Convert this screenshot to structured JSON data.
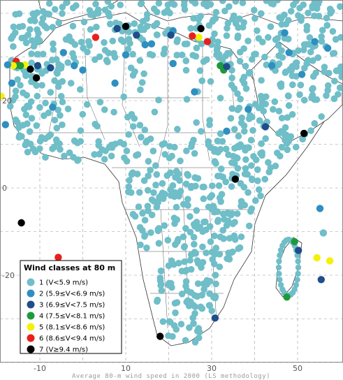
{
  "legend": {
    "title": "Wind classes at 80 m",
    "classes": [
      {
        "label": "1 (V<5.9 m/s)",
        "color": "#6fbec8"
      },
      {
        "label": "2 (5.9≤V<6.9 m/s)",
        "color": "#2f8fc0"
      },
      {
        "label": "3 (6.9≤V<7.5 m/s)",
        "color": "#1f4e8a"
      },
      {
        "label": "4 (7.5≤V<8.1 m/s)",
        "color": "#1f9a3a"
      },
      {
        "label": "5 (8.1≤V<8.6 m/s)",
        "color": "#f5f00a"
      },
      {
        "label": "6 (8.6≤V<9.4 m/s)",
        "color": "#e8201c"
      },
      {
        "label": "7 (V≥9.4 m/s)",
        "color": "#000000"
      }
    ]
  },
  "axes": {
    "lon_ticks": [
      {
        "value": -10,
        "label": "-10"
      },
      {
        "value": 10,
        "label": "10"
      },
      {
        "value": 30,
        "label": "30"
      },
      {
        "value": 50,
        "label": "50"
      }
    ],
    "lat_ticks": [
      {
        "value": 20,
        "label": "20"
      },
      {
        "value": 0,
        "label": "0"
      },
      {
        "value": -20,
        "label": "-20"
      }
    ]
  },
  "footer": "Average 80-m wind speed in 2000 (LS methodology)",
  "stations_strong": [
    {
      "lon": 10.0,
      "lat": 37.0,
      "cls": 7
    },
    {
      "lon": 27.5,
      "lat": 36.5,
      "cls": 7
    },
    {
      "lon": 27.0,
      "lat": 34.5,
      "cls": 5
    },
    {
      "lon": 25.5,
      "lat": 34.8,
      "cls": 6
    },
    {
      "lon": 29.0,
      "lat": 33.5,
      "cls": 6
    },
    {
      "lon": 3.0,
      "lat": 34.5,
      "cls": 6
    },
    {
      "lon": -15.5,
      "lat": 29.0,
      "cls": 6
    },
    {
      "lon": -13.5,
      "lat": 28.2,
      "cls": 5
    },
    {
      "lon": -14.5,
      "lat": 28.0,
      "cls": 4
    },
    {
      "lon": -15.5,
      "lat": 28.0,
      "cls": 4
    },
    {
      "lon": -16.2,
      "lat": 28.0,
      "cls": 5
    },
    {
      "lon": -17.5,
      "lat": 28.2,
      "cls": 2
    },
    {
      "lon": -12.2,
      "lat": 27.2,
      "cls": 7
    },
    {
      "lon": -10.8,
      "lat": 25.2,
      "cls": 7
    },
    {
      "lon": -10.5,
      "lat": 28.0,
      "cls": 3
    },
    {
      "lon": -7.5,
      "lat": 27.5,
      "cls": 3
    },
    {
      "lon": -19.0,
      "lat": 21.0,
      "cls": 5
    },
    {
      "lon": 32.0,
      "lat": 28.0,
      "cls": 4
    },
    {
      "lon": 32.8,
      "lat": 27.0,
      "cls": 4
    },
    {
      "lon": 33.5,
      "lat": 27.8,
      "cls": 3
    },
    {
      "lon": 42.5,
      "lat": 14.0,
      "cls": 3
    },
    {
      "lon": 51.5,
      "lat": 12.5,
      "cls": 7
    },
    {
      "lon": 35.5,
      "lat": 2.0,
      "cls": 7
    },
    {
      "lon": -14.3,
      "lat": -8.0,
      "cls": 7
    },
    {
      "lon": -5.7,
      "lat": -15.9,
      "cls": 6
    },
    {
      "lon": 55.2,
      "lat": -4.7,
      "cls": 2
    },
    {
      "lon": 56.0,
      "lat": -10.3,
      "cls": 1
    },
    {
      "lon": 49.3,
      "lat": -12.3,
      "cls": 4
    },
    {
      "lon": 50.2,
      "lat": -14.3,
      "cls": 3
    },
    {
      "lon": 54.5,
      "lat": -16.0,
      "cls": 5
    },
    {
      "lon": 57.5,
      "lat": -16.7,
      "cls": 5
    },
    {
      "lon": 55.5,
      "lat": -21.0,
      "cls": 3
    },
    {
      "lon": 47.5,
      "lat": -25.0,
      "cls": 4
    },
    {
      "lon": 30.8,
      "lat": -29.8,
      "cls": 3
    },
    {
      "lon": 18.0,
      "lat": -34.0,
      "cls": 7
    },
    {
      "lon": 12.5,
      "lat": 35.0,
      "cls": 3
    },
    {
      "lon": 8.0,
      "lat": 36.5,
      "cls": 3
    },
    {
      "lon": 14.5,
      "lat": 32.8,
      "cls": 2
    },
    {
      "lon": 21.0,
      "lat": 36.0,
      "cls": 2
    },
    {
      "lon": -4.5,
      "lat": 31.0,
      "cls": 2
    },
    {
      "lon": -2.0,
      "lat": 28.0,
      "cls": 2
    },
    {
      "lon": 0.0,
      "lat": 27.0,
      "cls": 2
    },
    {
      "lon": 10.0,
      "lat": 30.5,
      "cls": 2
    },
    {
      "lon": 7.5,
      "lat": 24.0,
      "cls": 2
    },
    {
      "lon": 20.5,
      "lat": 35.0,
      "cls": 3
    },
    {
      "lon": 47.0,
      "lat": 35.5,
      "cls": 2
    },
    {
      "lon": 54.0,
      "lat": 33.5,
      "cls": 2
    },
    {
      "lon": 51.0,
      "lat": 26.0,
      "cls": 2
    },
    {
      "lon": 57.0,
      "lat": 32.0,
      "cls": 2
    },
    {
      "lon": 44.0,
      "lat": 28.0,
      "cls": 2
    },
    {
      "lon": 26.0,
      "lat": 22.0,
      "cls": 2
    },
    {
      "lon": -18.0,
      "lat": 14.5,
      "cls": 2
    },
    {
      "lon": -16.5,
      "lat": 24.0,
      "cls": 2
    },
    {
      "lon": -7.0,
      "lat": 18.5,
      "cls": 2
    },
    {
      "lon": 38.5,
      "lat": 18.0,
      "cls": 2
    },
    {
      "lon": 48.0,
      "lat": 31.0,
      "cls": 2
    },
    {
      "lon": 16.0,
      "lat": 33.0,
      "cls": 2
    },
    {
      "lon": 33.5,
      "lat": 13.0,
      "cls": 2
    },
    {
      "lon": 21.0,
      "lat": 28.5,
      "cls": 2
    }
  ]
}
